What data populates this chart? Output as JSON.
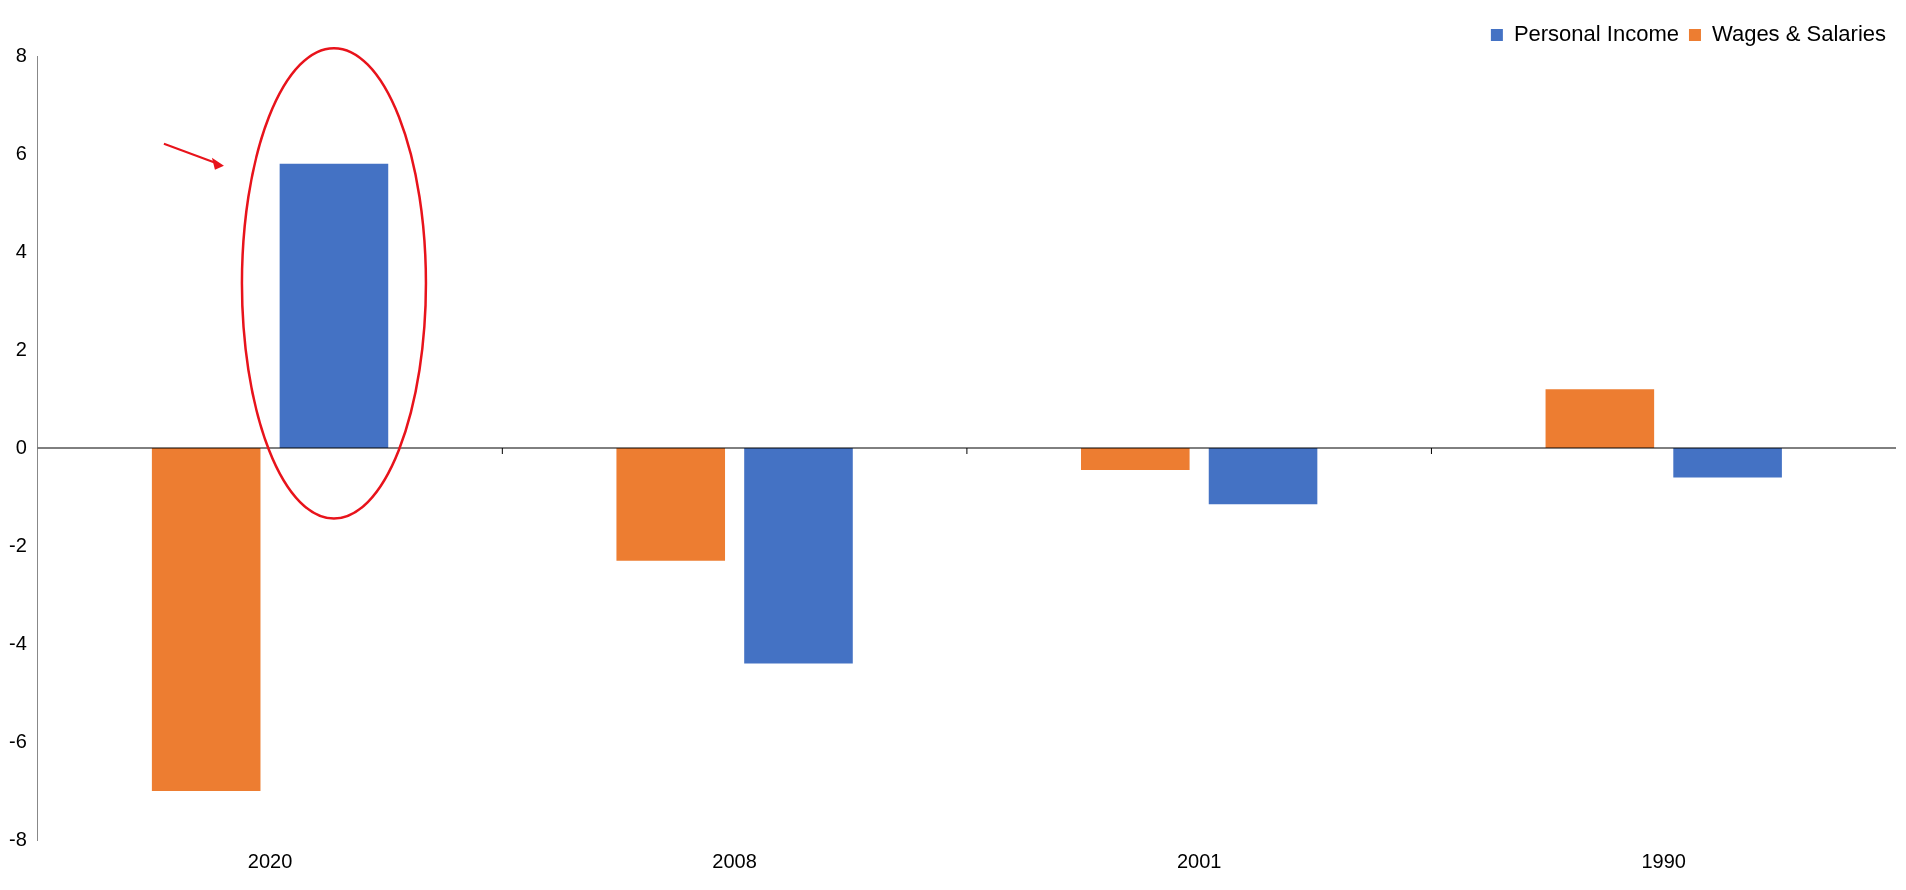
{
  "chart_data": {
    "type": "bar",
    "categories": [
      "2020",
      "2008",
      "2001",
      "1990"
    ],
    "series": [
      {
        "name": "Wages & Salaries",
        "color": "#ed7d31",
        "values": [
          -7.0,
          -2.3,
          -0.45,
          1.2
        ]
      },
      {
        "name": "Personal Income",
        "color": "#4472c4",
        "values": [
          5.8,
          -4.4,
          -1.15,
          -0.6
        ]
      }
    ],
    "ylim": [
      -8,
      8
    ],
    "yticks": [
      -8,
      -6,
      -4,
      -2,
      0,
      2,
      4,
      6,
      8
    ],
    "grid": false,
    "ref_lines": [
      {
        "axis": "y",
        "value": 0,
        "color": "#000000"
      }
    ],
    "legend": "top right"
  }
}
